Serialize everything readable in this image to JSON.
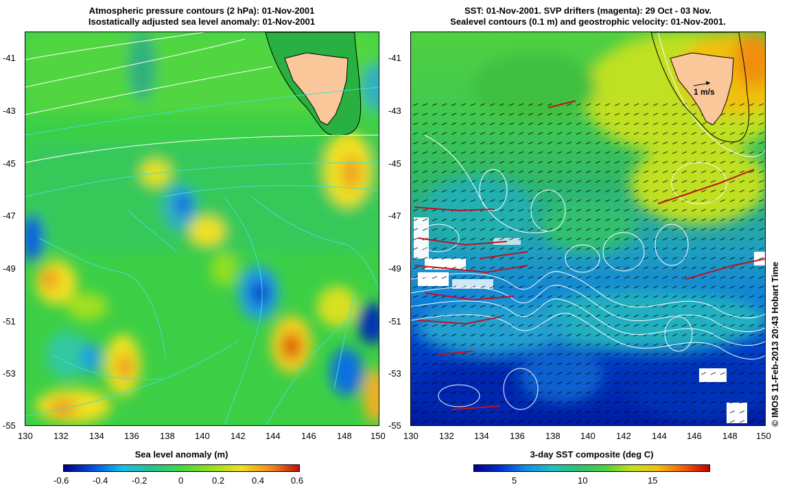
{
  "left_panel": {
    "title_line1": "Atmospheric pressure contours (2 hPa): 01-Nov-2001",
    "title_line2": "Isostatically adjusted sea level anomaly: 01-Nov-2001",
    "colorbar_label": "Sea level anomaly (m)",
    "colorbar_ticks": [
      "-0.6",
      "-0.4",
      "-0.2",
      "0",
      "0.2",
      "0.4",
      "0.6"
    ]
  },
  "right_panel": {
    "title_line1": "SST: 01-Nov-2001. SVP drifters (magenta): 29 Oct - 03 Nov.",
    "title_line2": "Sealevel contours (0.1 m) and geostrophic velocity: 01-Nov-2001.",
    "colorbar_label": "3-day SST composite (deg C)",
    "colorbar_ticks": [
      "5",
      "10",
      "15"
    ],
    "scale_label": "1 m/s"
  },
  "lat_ticks": [
    "-41",
    "-43",
    "-45",
    "-47",
    "-49",
    "-51",
    "-53",
    "-55"
  ],
  "lon_ticks": [
    "130",
    "132",
    "134",
    "136",
    "138",
    "140",
    "142",
    "144",
    "146",
    "148",
    "150"
  ],
  "copyright": "© IMOS 11-Feb-2013 20:43 Hobart Time",
  "colors": {
    "land": "#f9c79a",
    "ocean_green": "#3ccf46",
    "anomaly_scale": [
      "#000080",
      "#0050e0",
      "#18c0e8",
      "#28c090",
      "#44d844",
      "#90e020",
      "#f0e020",
      "#f09020",
      "#c01010"
    ],
    "sst_scale": [
      "#000090",
      "#0030d0",
      "#1090e0",
      "#20c0c0",
      "#30c070",
      "#50d040",
      "#c0e020",
      "#f0c010",
      "#f06010",
      "#c00000"
    ]
  }
}
